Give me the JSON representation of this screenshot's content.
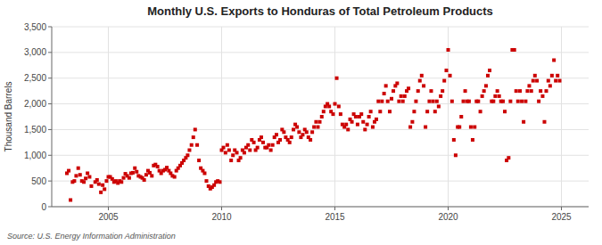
{
  "chart_data": {
    "type": "scatter",
    "title": "Monthly U.S. Exports to Honduras of Total Petroleum Products",
    "ylabel": "Thousand Barrels",
    "source": "Source: U.S. Energy Information Administration",
    "color": "#cc0000",
    "marker": "square",
    "grid": true,
    "xlim": [
      2002.5,
      2026.2
    ],
    "xticks": [
      2005,
      2010,
      2015,
      2020,
      2025
    ],
    "ylim": [
      0,
      3500
    ],
    "yticks": [
      0,
      500,
      {
        "value": 1000,
        "label": "1,000"
      },
      {
        "value": 1500,
        "label": "1,500"
      },
      {
        "value": 2000,
        "label": "2,000"
      },
      {
        "value": 2500,
        "label": "2,500"
      },
      {
        "value": 3000,
        "label": "3,000"
      },
      {
        "value": 3500,
        "label": "3,500"
      }
    ],
    "x": [
      2003.17,
      2003.25,
      2003.33,
      2003.42,
      2003.5,
      2003.58,
      2003.67,
      2003.75,
      2003.83,
      2003.92,
      2004.0,
      2004.08,
      2004.17,
      2004.25,
      2004.42,
      2004.5,
      2004.58,
      2004.67,
      2004.75,
      2004.83,
      2004.92,
      2005.0,
      2005.08,
      2005.17,
      2005.25,
      2005.33,
      2005.42,
      2005.5,
      2005.58,
      2005.67,
      2005.75,
      2005.83,
      2005.92,
      2006.0,
      2006.08,
      2006.17,
      2006.25,
      2006.33,
      2006.42,
      2006.5,
      2006.58,
      2006.67,
      2006.75,
      2006.83,
      2006.92,
      2007.0,
      2007.08,
      2007.17,
      2007.25,
      2007.33,
      2007.42,
      2007.5,
      2007.58,
      2007.67,
      2007.75,
      2007.83,
      2007.92,
      2008.0,
      2008.08,
      2008.17,
      2008.25,
      2008.33,
      2008.42,
      2008.5,
      2008.58,
      2008.67,
      2008.75,
      2008.83,
      2008.92,
      2009.0,
      2009.08,
      2009.17,
      2009.25,
      2009.33,
      2009.42,
      2009.5,
      2009.58,
      2009.67,
      2009.75,
      2009.83,
      2009.92,
      2010.0,
      2010.08,
      2010.17,
      2010.25,
      2010.33,
      2010.42,
      2010.5,
      2010.58,
      2010.67,
      2010.75,
      2010.83,
      2010.92,
      2011.0,
      2011.08,
      2011.17,
      2011.25,
      2011.33,
      2011.42,
      2011.5,
      2011.58,
      2011.67,
      2011.75,
      2011.83,
      2011.92,
      2012.0,
      2012.08,
      2012.17,
      2012.25,
      2012.33,
      2012.42,
      2012.5,
      2012.58,
      2012.67,
      2012.75,
      2012.83,
      2012.92,
      2013.0,
      2013.08,
      2013.17,
      2013.25,
      2013.33,
      2013.42,
      2013.5,
      2013.58,
      2013.67,
      2013.75,
      2013.83,
      2013.92,
      2014.0,
      2014.08,
      2014.17,
      2014.25,
      2014.33,
      2014.42,
      2014.5,
      2014.58,
      2014.67,
      2014.75,
      2014.83,
      2014.92,
      2015.0,
      2015.08,
      2015.17,
      2015.25,
      2015.33,
      2015.42,
      2015.5,
      2015.58,
      2015.67,
      2015.75,
      2015.83,
      2015.92,
      2016.0,
      2016.08,
      2016.17,
      2016.25,
      2016.33,
      2016.42,
      2016.5,
      2016.58,
      2016.67,
      2016.75,
      2016.83,
      2016.92,
      2017.0,
      2017.08,
      2017.17,
      2017.25,
      2017.33,
      2017.42,
      2017.5,
      2017.58,
      2017.67,
      2017.75,
      2017.83,
      2017.92,
      2018.0,
      2018.08,
      2018.17,
      2018.25,
      2018.33,
      2018.42,
      2018.5,
      2018.58,
      2018.67,
      2018.75,
      2018.83,
      2018.92,
      2019.0,
      2019.08,
      2019.17,
      2019.25,
      2019.33,
      2019.42,
      2019.5,
      2019.58,
      2019.67,
      2019.75,
      2019.83,
      2019.92,
      2020.0,
      2020.08,
      2020.17,
      2020.25,
      2020.33,
      2020.42,
      2020.5,
      2020.58,
      2020.67,
      2020.75,
      2020.83,
      2020.92,
      2021.0,
      2021.08,
      2021.17,
      2021.25,
      2021.33,
      2021.42,
      2021.5,
      2021.58,
      2021.67,
      2021.75,
      2021.83,
      2021.92,
      2022.0,
      2022.08,
      2022.17,
      2022.25,
      2022.33,
      2022.42,
      2022.5,
      2022.58,
      2022.67,
      2022.75,
      2022.83,
      2022.92,
      2023.0,
      2023.08,
      2023.17,
      2023.25,
      2023.33,
      2023.42,
      2023.5,
      2023.58,
      2023.67,
      2023.75,
      2023.83,
      2023.92,
      2024.0,
      2024.08,
      2024.17,
      2024.25,
      2024.33,
      2024.42,
      2024.5,
      2024.58,
      2024.67,
      2024.75,
      2024.83,
      2024.92
    ],
    "values": [
      650,
      700,
      130,
      480,
      500,
      600,
      750,
      620,
      500,
      480,
      550,
      650,
      580,
      400,
      480,
      520,
      440,
      280,
      420,
      340,
      500,
      580,
      580,
      540,
      480,
      500,
      460,
      500,
      480,
      560,
      640,
      600,
      560,
      650,
      660,
      750,
      680,
      600,
      580,
      560,
      520,
      620,
      700,
      660,
      600,
      800,
      820,
      780,
      700,
      650,
      700,
      720,
      760,
      700,
      650,
      600,
      580,
      700,
      750,
      800,
      850,
      900,
      950,
      1000,
      1100,
      1200,
      1350,
      1500,
      1200,
      900,
      750,
      700,
      650,
      500,
      400,
      350,
      380,
      420,
      480,
      500,
      480,
      1100,
      1150,
      1050,
      1200,
      1100,
      900,
      1000,
      1100,
      1050,
      900,
      950,
      1100,
      1050,
      1150,
      1200,
      1100,
      1300,
      1250,
      1100,
      1150,
      1300,
      1350,
      1250,
      1150,
      1150,
      1200,
      1100,
      1200,
      1350,
      1400,
      1250,
      1300,
      1500,
      1450,
      1350,
      1300,
      1250,
      1350,
      1500,
      1600,
      1550,
      1450,
      1350,
      1400,
      1500,
      1450,
      1350,
      1300,
      1450,
      1550,
      1650,
      1550,
      1650,
      1750,
      1850,
      1950,
      2000,
      1950,
      1850,
      1800,
      2000,
      2500,
      1950,
      1800,
      1600,
      1550,
      1600,
      1500,
      1700,
      1650,
      1800,
      1750,
      1600,
      1750,
      1800,
      1650,
      1500,
      1600,
      1750,
      1850,
      1550,
      1650,
      1700,
      2050,
      1850,
      2050,
      2200,
      2350,
      2050,
      1850,
      2100,
      2250,
      2350,
      2400,
      2050,
      2150,
      2050,
      2150,
      2250,
      2300,
      1550,
      1650,
      1850,
      2050,
      2250,
      2450,
      2550,
      2350,
      1550,
      1850,
      2050,
      2250,
      2050,
      1850,
      2050,
      1950,
      2150,
      2250,
      2450,
      2650,
      3050,
      2550,
      2050,
      1300,
      1000,
      1550,
      1550,
      1750,
      2050,
      2250,
      2050,
      2050,
      1550,
      1300,
      1550,
      2050,
      2050,
      1850,
      2150,
      2250,
      2350,
      2550,
      2650,
      2050,
      2050,
      2150,
      2250,
      2150,
      2050,
      2050,
      1850,
      900,
      950,
      2050,
      3050,
      3050,
      2250,
      2050,
      2250,
      2050,
      1650,
      2050,
      2250,
      2350,
      2250,
      2450,
      2550,
      2450,
      2050,
      2250,
      2150,
      1650,
      2250,
      2450,
      2350,
      2550,
      2850,
      2450,
      2550,
      2450
    ]
  }
}
